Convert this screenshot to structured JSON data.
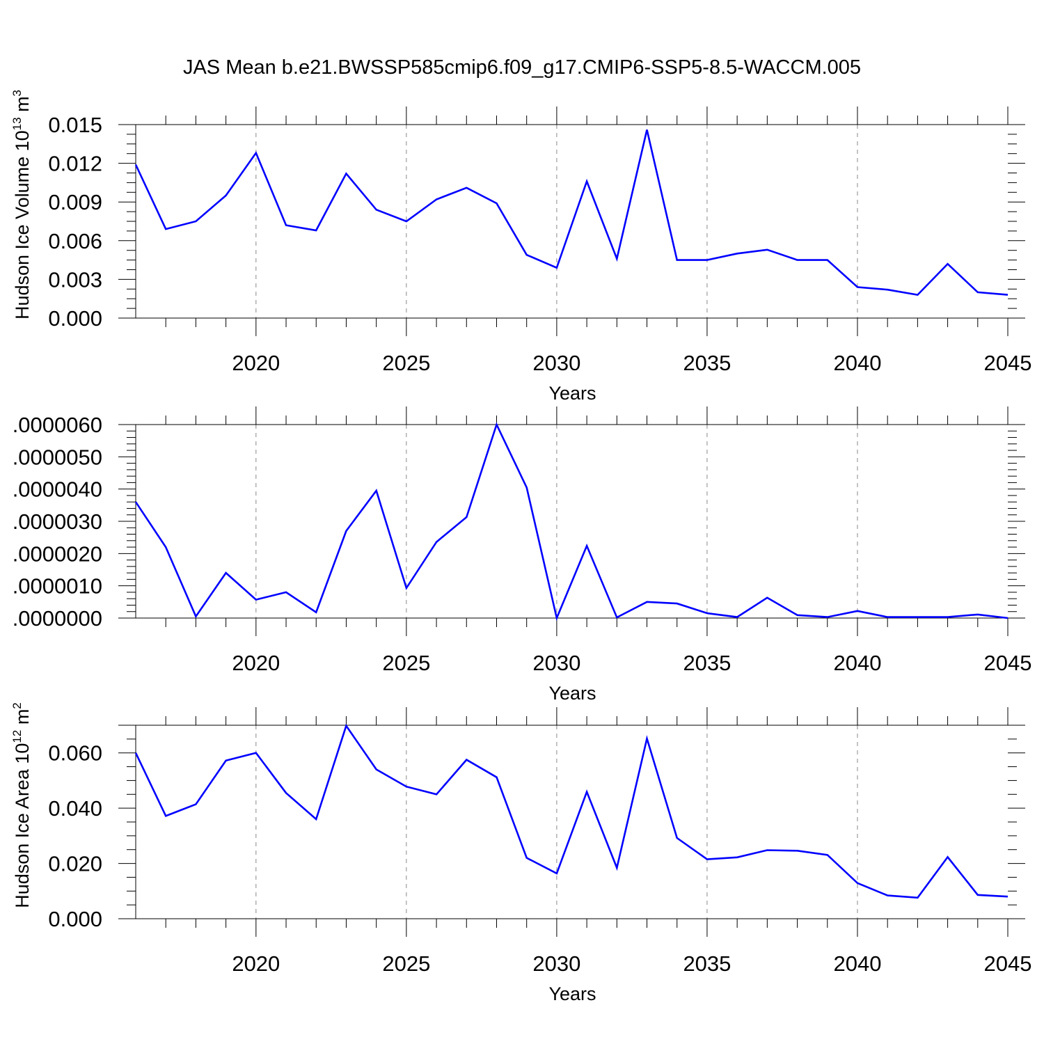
{
  "title": "JAS Mean b.e21.BWSSP585cmip6.f09_g17.CMIP6-SSP5-8.5-WACCM.005",
  "colors": {
    "line": "#0000ff",
    "grid": "#888888",
    "axis": "#000000"
  },
  "chart_data": [
    {
      "type": "line",
      "ylabel": "Hudson Ice Volume 10",
      "ylabel_exp": "13",
      "ylabel_unit": " m",
      "ylabel_unit_exp": "3",
      "xlabel": "Years",
      "xlim": [
        2016,
        2045
      ],
      "ylim": [
        0,
        0.015
      ],
      "xticks": [
        2020,
        2025,
        2030,
        2035,
        2040,
        2045
      ],
      "xtick_labels": [
        "2020",
        "2025",
        "2030",
        "2035",
        "2040",
        "2045"
      ],
      "yticks": [
        0,
        0.003,
        0.006,
        0.009,
        0.012,
        0.015
      ],
      "ytick_labels": [
        "0.000",
        "0.003",
        "0.006",
        "0.009",
        "0.012",
        "0.015"
      ],
      "x": [
        2016,
        2017,
        2018,
        2019,
        2020,
        2021,
        2022,
        2023,
        2024,
        2025,
        2026,
        2027,
        2028,
        2029,
        2030,
        2031,
        2032,
        2033,
        2034,
        2035,
        2036,
        2037,
        2038,
        2039,
        2040,
        2041,
        2042,
        2043,
        2044,
        2045
      ],
      "values": [
        0.0119,
        0.0069,
        0.0075,
        0.0095,
        0.0128,
        0.0072,
        0.0068,
        0.0112,
        0.0084,
        0.0075,
        0.0092,
        0.0101,
        0.0089,
        0.0049,
        0.0039,
        0.0106,
        0.0046,
        0.0146,
        0.0045,
        0.0045,
        0.005,
        0.0053,
        0.0045,
        0.0045,
        0.0024,
        0.0022,
        0.0018,
        0.0042,
        0.002,
        0.0018
      ]
    },
    {
      "type": "line",
      "ylabel": "",
      "xlabel": "Years",
      "xlim": [
        2016,
        2045
      ],
      "ylim": [
        0,
        6e-06
      ],
      "xticks": [
        2020,
        2025,
        2030,
        2035,
        2040,
        2045
      ],
      "xtick_labels": [
        "2020",
        "2025",
        "2030",
        "2035",
        "2040",
        "2045"
      ],
      "yticks": [
        0,
        1e-06,
        2e-06,
        3e-06,
        4e-06,
        5e-06,
        6e-06
      ],
      "ytick_labels": [
        ".0000000",
        ".0000010",
        ".0000020",
        ".0000030",
        ".0000040",
        ".0000050",
        ".0000060"
      ],
      "x": [
        2016,
        2017,
        2018,
        2019,
        2020,
        2021,
        2022,
        2023,
        2024,
        2025,
        2026,
        2027,
        2028,
        2029,
        2030,
        2031,
        2032,
        2033,
        2034,
        2035,
        2036,
        2037,
        2038,
        2039,
        2040,
        2041,
        2042,
        2043,
        2044,
        2045
      ],
      "values": [
        3.6e-06,
        2.2e-06,
        5e-08,
        1.4e-06,
        5.7e-07,
        8e-07,
        1.8e-07,
        2.7e-06,
        3.95e-06,
        9.3e-07,
        2.36e-06,
        3.13e-06,
        6e-06,
        4.05e-06,
        0.0,
        2.24e-06,
        2e-08,
        5e-07,
        4.5e-07,
        1.5e-07,
        3e-08,
        6.3e-07,
        9e-08,
        3e-08,
        2.2e-07,
        3e-08,
        3e-08,
        3e-08,
        1.1e-07,
        0.0
      ]
    },
    {
      "type": "line",
      "ylabel": "Hudson Ice Area 10",
      "ylabel_exp": "12",
      "ylabel_unit": " m",
      "ylabel_unit_exp": "2",
      "xlabel": "Years",
      "xlim": [
        2016,
        2045
      ],
      "ylim": [
        0,
        0.07
      ],
      "xticks": [
        2020,
        2025,
        2030,
        2035,
        2040,
        2045
      ],
      "xtick_labels": [
        "2020",
        "2025",
        "2030",
        "2035",
        "2040",
        "2045"
      ],
      "yticks": [
        0,
        0.02,
        0.04,
        0.06
      ],
      "ytick_labels": [
        "0.000",
        "0.020",
        "0.040",
        "0.060"
      ],
      "x": [
        2016,
        2017,
        2018,
        2019,
        2020,
        2021,
        2022,
        2023,
        2024,
        2025,
        2026,
        2027,
        2028,
        2029,
        2030,
        2031,
        2032,
        2033,
        2034,
        2035,
        2036,
        2037,
        2038,
        2039,
        2040,
        2041,
        2042,
        2043,
        2044,
        2045
      ],
      "values": [
        0.06,
        0.0372,
        0.0414,
        0.0572,
        0.06,
        0.0455,
        0.036,
        0.0698,
        0.054,
        0.0478,
        0.045,
        0.0575,
        0.0512,
        0.022,
        0.0164,
        0.0459,
        0.0184,
        0.0652,
        0.0292,
        0.0215,
        0.0222,
        0.0248,
        0.0246,
        0.0231,
        0.0129,
        0.0084,
        0.0076,
        0.0223,
        0.0086,
        0.008
      ]
    }
  ]
}
